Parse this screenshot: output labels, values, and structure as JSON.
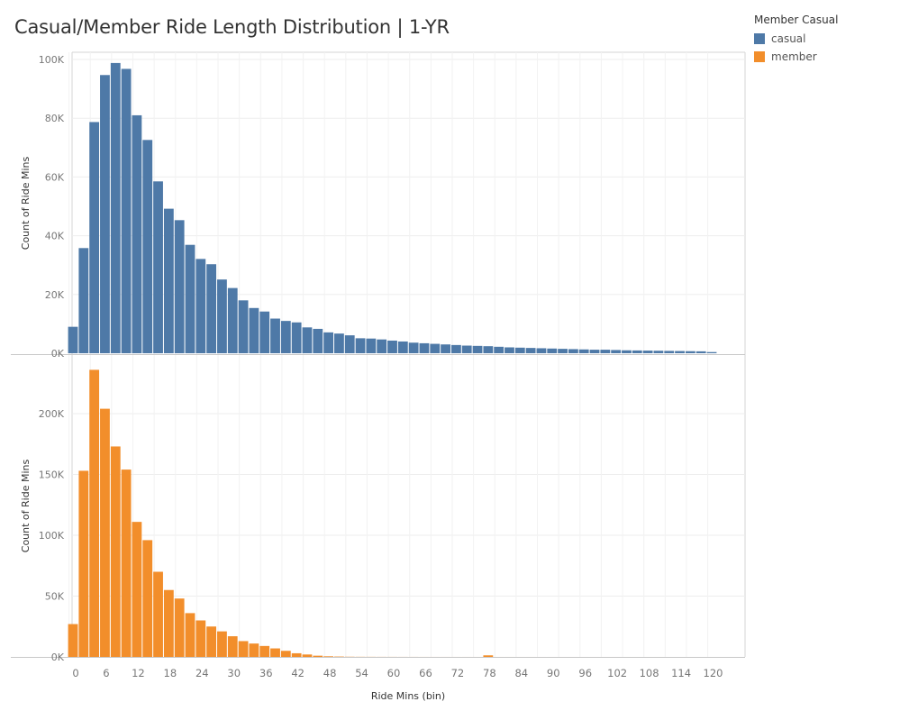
{
  "title": "Casual/Member Ride Length Distribution | 1-YR",
  "legend": {
    "title": "Member Casual",
    "items": [
      {
        "label": "casual",
        "color": "#4e79a7"
      },
      {
        "label": "member",
        "color": "#f28e2b"
      }
    ]
  },
  "chart_data": {
    "type": "bar",
    "xlabel": "Ride Mins (bin)",
    "x_ticks": [
      "0",
      "6",
      "12",
      "18",
      "24",
      "30",
      "36",
      "42",
      "48",
      "54",
      "60",
      "66",
      "72",
      "78",
      "84",
      "90",
      "96",
      "102",
      "108",
      "114",
      "120"
    ],
    "bin_size": 2,
    "bin_starts": [
      0,
      2,
      4,
      6,
      8,
      10,
      12,
      14,
      16,
      18,
      20,
      22,
      24,
      26,
      28,
      30,
      32,
      34,
      36,
      38,
      40,
      42,
      44,
      46,
      48,
      50,
      52,
      54,
      56,
      58,
      60,
      62,
      64,
      66,
      68,
      70,
      72,
      74,
      76,
      78,
      80,
      82,
      84,
      86,
      88,
      90,
      92,
      94,
      96,
      98,
      100,
      102,
      104,
      106,
      108,
      110,
      112,
      114,
      116,
      118,
      120
    ],
    "panels": [
      {
        "name": "casual",
        "ylabel": "Count of Ride Mins",
        "ylim": [
          0,
          102000
        ],
        "yticks": [
          0,
          20000,
          40000,
          60000,
          80000,
          100000
        ],
        "ytick_labels": [
          "0K",
          "20K",
          "40K",
          "60K",
          "80K",
          "100K"
        ],
        "color": "#4e79a7",
        "values": [
          9000,
          35800,
          78700,
          94700,
          98800,
          96800,
          81000,
          72600,
          58500,
          49200,
          45300,
          36900,
          32100,
          30300,
          25100,
          22200,
          18000,
          15400,
          14200,
          11800,
          11000,
          10500,
          8800,
          8300,
          7100,
          6700,
          6100,
          5100,
          5000,
          4700,
          4300,
          4000,
          3600,
          3400,
          3200,
          3000,
          2800,
          2600,
          2500,
          2400,
          2200,
          2000,
          1900,
          1800,
          1700,
          1600,
          1500,
          1400,
          1300,
          1200,
          1200,
          1100,
          1000,
          950,
          900,
          850,
          800,
          750,
          700,
          650,
          400
        ]
      },
      {
        "name": "member",
        "ylabel": "Count of Ride Mins",
        "ylim": [
          0,
          248000
        ],
        "yticks": [
          0,
          50000,
          100000,
          150000,
          200000
        ],
        "ytick_labels": [
          "0K",
          "50K",
          "100K",
          "150K",
          "200K"
        ],
        "color": "#f28e2b",
        "values": [
          27000,
          153000,
          236000,
          204000,
          173000,
          154000,
          111000,
          96000,
          70000,
          55000,
          48000,
          36000,
          30000,
          25000,
          21000,
          17000,
          13000,
          11000,
          9000,
          7000,
          5000,
          3000,
          2000,
          1000,
          500,
          300,
          150,
          100,
          80,
          60,
          50,
          40,
          30,
          25,
          20,
          20,
          15,
          15,
          10,
          1300,
          10,
          10,
          8,
          8,
          5,
          5,
          5,
          5,
          5,
          5,
          4,
          4,
          3,
          3,
          3,
          3,
          2,
          2,
          2,
          2,
          1
        ]
      }
    ]
  }
}
